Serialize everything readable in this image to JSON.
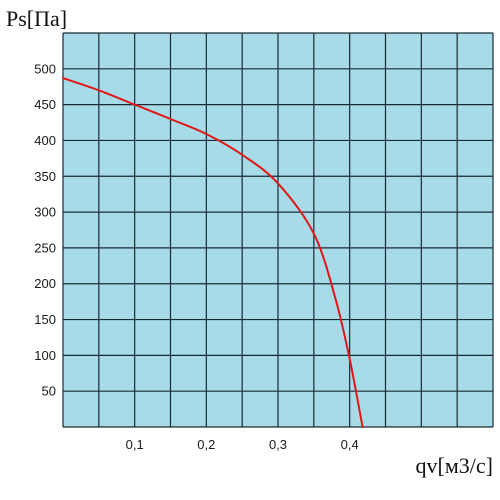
{
  "chart_data": {
    "type": "line",
    "title": "",
    "ylabel": "Ps[Па]",
    "xlabel": "qv[м3/с]",
    "xlim": [
      0,
      0.6
    ],
    "ylim": [
      0,
      550
    ],
    "x_ticks": [
      0.1,
      0.2,
      0.3,
      0.4
    ],
    "x_tick_labels": [
      "0,1",
      "0,2",
      "0,3",
      "0,4"
    ],
    "y_ticks": [
      50,
      100,
      150,
      200,
      250,
      300,
      350,
      400,
      450,
      500
    ],
    "y_tick_labels": [
      "50",
      "100",
      "150",
      "200",
      "250",
      "300",
      "350",
      "400",
      "450",
      "500"
    ],
    "grid": true,
    "plot_background": "#a7dbe8",
    "grid_color": "#1a2a33",
    "series": [
      {
        "name": "",
        "color": "#e01818",
        "x": [
          0.0,
          0.05,
          0.1,
          0.15,
          0.2,
          0.25,
          0.3,
          0.35,
          0.38,
          0.4,
          0.418
        ],
        "y": [
          487,
          470,
          450,
          430,
          409,
          380,
          340,
          270,
          180,
          95,
          0
        ]
      }
    ]
  }
}
